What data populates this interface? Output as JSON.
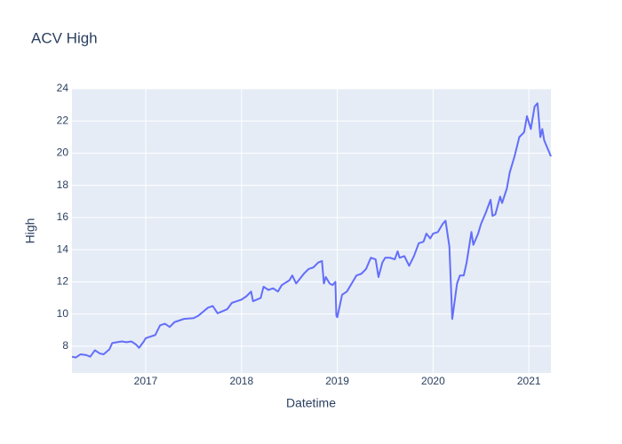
{
  "chart_data": {
    "type": "line",
    "title": "ACV High",
    "x_label": "Datetime",
    "y_label": "High",
    "x": [
      2016.23,
      2016.27,
      2016.32,
      2016.38,
      2016.42,
      2016.47,
      2016.52,
      2016.56,
      2016.62,
      2016.65,
      2016.7,
      2016.75,
      2016.8,
      2016.85,
      2016.9,
      2016.93,
      2016.98,
      2017.0,
      2017.1,
      2017.15,
      2017.2,
      2017.25,
      2017.3,
      2017.4,
      2017.5,
      2017.55,
      2017.65,
      2017.7,
      2017.75,
      2017.85,
      2017.9,
      2017.95,
      2018.0,
      2018.05,
      2018.1,
      2018.12,
      2018.2,
      2018.23,
      2018.28,
      2018.33,
      2018.38,
      2018.42,
      2018.5,
      2018.53,
      2018.57,
      2018.65,
      2018.7,
      2018.75,
      2018.8,
      2018.84,
      2018.86,
      2018.88,
      2018.92,
      2018.95,
      2018.98,
      2018.99,
      2019.0,
      2019.05,
      2019.1,
      2019.15,
      2019.2,
      2019.25,
      2019.3,
      2019.35,
      2019.4,
      2019.43,
      2019.47,
      2019.5,
      2019.55,
      2019.6,
      2019.63,
      2019.65,
      2019.7,
      2019.75,
      2019.8,
      2019.85,
      2019.9,
      2019.93,
      2019.97,
      2020.0,
      2020.05,
      2020.1,
      2020.13,
      2020.17,
      2020.2,
      2020.25,
      2020.28,
      2020.32,
      2020.35,
      2020.4,
      2020.42,
      2020.47,
      2020.5,
      2020.55,
      2020.6,
      2020.62,
      2020.65,
      2020.7,
      2020.72,
      2020.77,
      2020.8,
      2020.85,
      2020.9,
      2020.95,
      2020.98,
      2021.02,
      2021.06,
      2021.09,
      2021.12,
      2021.14,
      2021.16,
      2021.23
    ],
    "values": [
      7.35,
      7.3,
      7.5,
      7.45,
      7.35,
      7.75,
      7.55,
      7.5,
      7.8,
      8.2,
      8.25,
      8.3,
      8.25,
      8.3,
      8.1,
      7.9,
      8.3,
      8.5,
      8.7,
      9.3,
      9.4,
      9.2,
      9.5,
      9.7,
      9.75,
      9.9,
      10.4,
      10.5,
      10.05,
      10.3,
      10.7,
      10.8,
      10.9,
      11.1,
      11.4,
      10.8,
      11.0,
      11.7,
      11.5,
      11.6,
      11.4,
      11.8,
      12.1,
      12.4,
      11.9,
      12.5,
      12.8,
      12.9,
      13.2,
      13.3,
      11.9,
      12.3,
      11.9,
      11.8,
      12.0,
      9.9,
      9.8,
      11.2,
      11.4,
      11.9,
      12.4,
      12.5,
      12.8,
      13.5,
      13.4,
      12.3,
      13.2,
      13.5,
      13.5,
      13.4,
      13.9,
      13.5,
      13.6,
      13.0,
      13.6,
      14.4,
      14.5,
      15.0,
      14.7,
      15.0,
      15.1,
      15.6,
      15.8,
      14.2,
      9.7,
      11.9,
      12.4,
      12.4,
      13.2,
      15.1,
      14.3,
      15.0,
      15.6,
      16.3,
      17.1,
      16.1,
      16.2,
      17.3,
      16.9,
      17.8,
      18.8,
      19.8,
      21.0,
      21.3,
      22.3,
      21.5,
      22.9,
      23.1,
      21.0,
      21.5,
      20.8,
      19.8
    ],
    "color": "#636efa",
    "xlim": [
      2016.23,
      2021.23
    ],
    "xticks": [
      2017,
      2018,
      2019,
      2020,
      2021
    ],
    "ylim": [
      6.34,
      24
    ],
    "yticks": [
      8,
      10,
      12,
      14,
      16,
      18,
      20,
      22,
      24
    ],
    "grid": true
  }
}
